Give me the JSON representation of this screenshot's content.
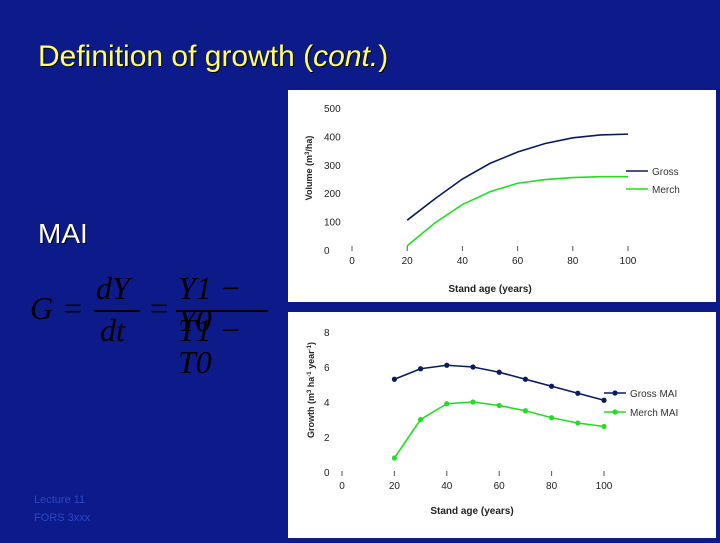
{
  "slide": {
    "title_main": "Definition of growth (",
    "title_italic": "cont.",
    "title_end": ")",
    "mai_label": "MAI",
    "equation": {
      "lhs": "G",
      "eq1": "=",
      "d_num": "dY",
      "d_den": "dt",
      "eq2": "=",
      "f_num": "Y1 − Y0",
      "f_den": "T1 − T0"
    },
    "footer_line1": "Lecture 11",
    "footer_line2": "FORS 3xxx"
  },
  "colors": {
    "background": "#0d1b8a",
    "title": "#ffff66",
    "gross": "#0b1a5e",
    "merch": "#22dd22"
  },
  "chart_data": [
    {
      "type": "line",
      "x": [
        20,
        30,
        40,
        50,
        60,
        70,
        80,
        90,
        100
      ],
      "series": [
        {
          "name": "Gross",
          "values": [
            105,
            180,
            250,
            305,
            345,
            375,
            395,
            405,
            408
          ]
        },
        {
          "name": "Merch",
          "values": [
            15,
            95,
            160,
            205,
            235,
            248,
            255,
            258,
            258
          ]
        }
      ],
      "xlabel": "Stand age (years)",
      "ylabel": "Volume (m3/ha)",
      "xlim": [
        0,
        100
      ],
      "ylim": [
        0,
        500
      ],
      "xticks": [
        0,
        20,
        40,
        60,
        80,
        100
      ],
      "yticks": [
        0,
        100,
        200,
        300,
        400,
        500
      ],
      "legend": "right"
    },
    {
      "type": "line",
      "x": [
        20,
        30,
        40,
        50,
        60,
        70,
        80,
        90,
        100
      ],
      "series": [
        {
          "name": "Gross MAI",
          "values": [
            5.3,
            5.9,
            6.1,
            6.0,
            5.7,
            5.3,
            4.9,
            4.5,
            4.1
          ]
        },
        {
          "name": "Merch MAI",
          "values": [
            0.8,
            3.0,
            3.9,
            4.0,
            3.8,
            3.5,
            3.1,
            2.8,
            2.6
          ]
        }
      ],
      "xlabel": "Stand age (years)",
      "ylabel": "Growth (m3 ha-1 year-1)",
      "xlim": [
        0,
        100
      ],
      "ylim": [
        0,
        8
      ],
      "xticks": [
        0,
        20,
        40,
        60,
        80,
        100
      ],
      "yticks": [
        0,
        2,
        4,
        6,
        8
      ],
      "legend": "right"
    }
  ]
}
